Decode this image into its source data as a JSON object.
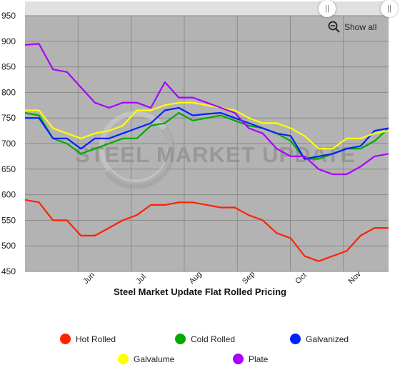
{
  "chart_data": {
    "type": "line",
    "title": "Steel Market Update Flat Rolled Pricing",
    "watermark": "STEEL MARKET UPDATE",
    "ylim": [
      450,
      950
    ],
    "y_ticks": [
      450,
      500,
      550,
      600,
      650,
      700,
      750,
      800,
      850,
      900,
      950
    ],
    "x_labels": [
      "Jun",
      "Jul",
      "Aug",
      "Sep",
      "Oct",
      "Nov"
    ],
    "grid": true,
    "legend_position": "bottom",
    "plot_background": "#b3b3b3",
    "series": [
      {
        "name": "Hot Rolled",
        "color": "#ff2200",
        "values": [
          590,
          585,
          550,
          550,
          520,
          520,
          535,
          550,
          560,
          580,
          580,
          585,
          585,
          580,
          575,
          575,
          560,
          550,
          525,
          515,
          480,
          470,
          480,
          490,
          520,
          535,
          535
        ]
      },
      {
        "name": "Cold Rolled",
        "color": "#00aa00",
        "values": [
          760,
          755,
          710,
          700,
          680,
          690,
          700,
          710,
          710,
          735,
          740,
          760,
          745,
          750,
          755,
          745,
          735,
          730,
          720,
          705,
          670,
          670,
          680,
          690,
          690,
          705,
          730
        ]
      },
      {
        "name": "Galvanized",
        "color": "#0022ff",
        "values": [
          750,
          750,
          710,
          710,
          690,
          710,
          710,
          720,
          730,
          740,
          765,
          770,
          755,
          758,
          760,
          750,
          740,
          730,
          720,
          715,
          670,
          675,
          680,
          690,
          695,
          725,
          730
        ]
      },
      {
        "name": "Galvalume",
        "color": "#ffff00",
        "values": [
          765,
          765,
          730,
          720,
          710,
          720,
          725,
          735,
          765,
          765,
          775,
          780,
          780,
          775,
          770,
          765,
          750,
          740,
          740,
          730,
          715,
          690,
          690,
          710,
          710,
          720,
          725
        ]
      },
      {
        "name": "Plate",
        "color": "#aa00ff",
        "values": [
          893,
          895,
          845,
          840,
          810,
          780,
          770,
          780,
          780,
          770,
          820,
          790,
          790,
          780,
          770,
          760,
          730,
          720,
          690,
          675,
          675,
          650,
          640,
          640,
          655,
          675,
          680
        ]
      }
    ]
  },
  "controls": {
    "show_all_label": "Show all",
    "handle_left_glyph": "||",
    "handle_right_glyph": "||"
  }
}
